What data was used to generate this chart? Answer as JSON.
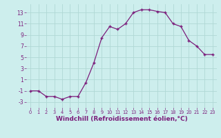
{
  "x": [
    0,
    1,
    2,
    3,
    4,
    5,
    6,
    7,
    8,
    9,
    10,
    11,
    12,
    13,
    14,
    15,
    16,
    17,
    18,
    19,
    20,
    21,
    22,
    23
  ],
  "y": [
    -1,
    -1,
    -2,
    -2,
    -2.5,
    -2,
    -2,
    0.5,
    4.0,
    8.5,
    10.5,
    10.0,
    11.0,
    13.0,
    13.5,
    13.5,
    13.2,
    13.0,
    11.0,
    10.5,
    8.0,
    7.0,
    5.5,
    5.5
  ],
  "line_color": "#7b1d7b",
  "marker": "+",
  "bg_color": "#cdeeed",
  "grid_color": "#b0d8d5",
  "xlabel": "Windchill (Refroidissement éolien,°C)",
  "xlabel_fontsize": 6.5,
  "yticks": [
    -3,
    -1,
    1,
    3,
    5,
    7,
    9,
    11,
    13
  ],
  "ylim": [
    -4.0,
    14.5
  ],
  "xlim": [
    -0.5,
    23.5
  ]
}
